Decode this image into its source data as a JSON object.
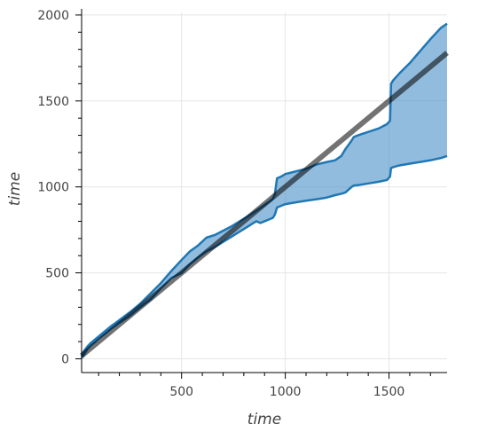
{
  "chart_data": {
    "type": "area",
    "xlabel": "time",
    "ylabel": "time",
    "xlim": [
      18,
      1780
    ],
    "ylim": [
      -80,
      2015
    ],
    "xticks": [
      500,
      1000,
      1500
    ],
    "yticks": [
      0,
      500,
      1000,
      1500,
      2000
    ],
    "grid": true,
    "colors": {
      "band_fill": "#4a90c8",
      "band_line": "#1f77b4",
      "reference_line": "#000000"
    },
    "series": [
      {
        "role": "upper-bound",
        "x": [
          18,
          30,
          45,
          60,
          80,
          100,
          130,
          160,
          200,
          250,
          300,
          350,
          400,
          450,
          500,
          540,
          580,
          620,
          660,
          700,
          740,
          780,
          800,
          820,
          840,
          860,
          880,
          900,
          920,
          940,
          950,
          960,
          980,
          1000,
          1050,
          1100,
          1150,
          1200,
          1240,
          1270,
          1290,
          1320,
          1330,
          1350,
          1400,
          1450,
          1490,
          1505,
          1510,
          1520,
          1550,
          1600,
          1650,
          1700,
          1750,
          1780
        ],
        "y": [
          15,
          45,
          70,
          90,
          110,
          130,
          160,
          190,
          225,
          270,
          320,
          380,
          440,
          510,
          575,
          625,
          660,
          705,
          720,
          745,
          770,
          800,
          815,
          830,
          845,
          862,
          878,
          895,
          912,
          930,
          960,
          1050,
          1060,
          1075,
          1090,
          1105,
          1130,
          1145,
          1155,
          1180,
          1220,
          1270,
          1290,
          1300,
          1320,
          1340,
          1365,
          1385,
          1600,
          1620,
          1660,
          1720,
          1790,
          1860,
          1925,
          1950
        ]
      },
      {
        "role": "lower-bound",
        "x": [
          18,
          30,
          45,
          60,
          80,
          100,
          130,
          160,
          200,
          250,
          300,
          350,
          400,
          450,
          500,
          540,
          580,
          620,
          660,
          700,
          740,
          780,
          800,
          820,
          840,
          860,
          880,
          900,
          920,
          940,
          950,
          960,
          980,
          1000,
          1050,
          1100,
          1150,
          1200,
          1240,
          1270,
          1290,
          1320,
          1330,
          1350,
          1400,
          1450,
          1490,
          1505,
          1510,
          1520,
          1550,
          1600,
          1650,
          1700,
          1750,
          1780
        ],
        "y": [
          5,
          25,
          55,
          75,
          95,
          118,
          145,
          175,
          210,
          250,
          300,
          345,
          410,
          470,
          500,
          550,
          590,
          625,
          650,
          680,
          710,
          740,
          755,
          770,
          785,
          800,
          790,
          800,
          810,
          820,
          840,
          880,
          890,
          900,
          910,
          920,
          928,
          938,
          952,
          960,
          968,
          1000,
          1008,
          1010,
          1020,
          1030,
          1040,
          1060,
          1110,
          1115,
          1125,
          1135,
          1145,
          1155,
          1168,
          1180
        ]
      },
      {
        "role": "reference-line",
        "x": [
          18,
          1780
        ],
        "y": [
          18,
          1780
        ]
      }
    ]
  }
}
